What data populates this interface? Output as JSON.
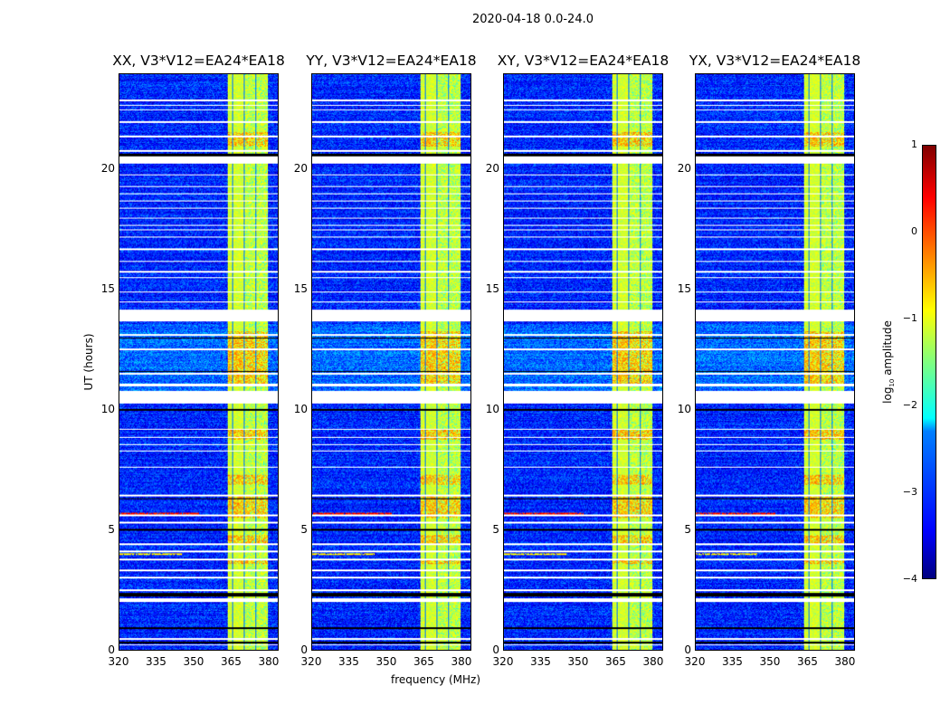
{
  "chart_data": {
    "type": "heatmap",
    "title": "2020-04-18 0.0-24.0",
    "xlabel": "frequency (MHz)",
    "ylabel": "UT (hours)",
    "xlim": [
      320,
      384
    ],
    "ylim": [
      0,
      24
    ],
    "xticks": [
      "320",
      "335",
      "350",
      "365",
      "380"
    ],
    "yticks": [
      "0",
      "5",
      "10",
      "15",
      "20"
    ],
    "panels": [
      {
        "title": "XX, V3*V12=EA24*EA18",
        "rfi_line": true
      },
      {
        "title": "YY, V3*V12=EA24*EA18",
        "rfi_line": true
      },
      {
        "title": "XY, V3*V12=EA24*EA18",
        "rfi_line": true
      },
      {
        "title": "YX, V3*V12=EA24*EA18",
        "rfi_line": true
      }
    ],
    "background_log_amp": -3.2,
    "band_log_amp": -1.1,
    "band_segments_mhz": [
      [
        363.5,
        365.3
      ],
      [
        365.7,
        370.0
      ],
      [
        370.4,
        374.7
      ],
      [
        375.1,
        379.8
      ]
    ],
    "band_bright_hours": [
      [
        0,
        2.1
      ],
      [
        2.6,
        10.4
      ],
      [
        10.4,
        13.6
      ],
      [
        13.6,
        24
      ]
    ],
    "hot_hours": [
      [
        3.6,
        3.8
      ],
      [
        4.4,
        4.8
      ],
      [
        5.5,
        6.4
      ],
      [
        6.9,
        7.3
      ],
      [
        8.8,
        9.2
      ],
      [
        11.0,
        13.3
      ],
      [
        21.0,
        21.6
      ]
    ],
    "flagged_white_hours": [
      [
        0.2,
        0.25
      ],
      [
        0.45,
        0.5
      ],
      [
        2.0,
        2.15
      ],
      [
        2.45,
        2.55
      ],
      [
        3.0,
        3.05
      ],
      [
        3.3,
        3.35
      ],
      [
        3.75,
        3.8
      ],
      [
        4.1,
        4.15
      ],
      [
        4.4,
        4.45
      ],
      [
        5.3,
        5.35
      ],
      [
        5.6,
        5.65
      ],
      [
        6.4,
        6.5
      ],
      [
        7.6,
        7.65
      ],
      [
        8.3,
        8.35
      ],
      [
        8.55,
        8.6
      ],
      [
        8.85,
        8.9
      ],
      [
        9.2,
        9.25
      ],
      [
        10.3,
        10.8
      ],
      [
        11.0,
        11.1
      ],
      [
        11.5,
        11.55
      ],
      [
        12.5,
        12.6
      ],
      [
        13.1,
        13.2
      ],
      [
        13.7,
        14.2
      ],
      [
        14.5,
        14.55
      ],
      [
        14.9,
        14.95
      ],
      [
        15.5,
        15.55
      ],
      [
        15.75,
        15.8
      ],
      [
        16.2,
        16.25
      ],
      [
        16.7,
        16.75
      ],
      [
        17.2,
        17.25
      ],
      [
        17.5,
        17.55
      ],
      [
        17.7,
        17.75
      ],
      [
        18.0,
        18.05
      ],
      [
        18.4,
        18.45
      ],
      [
        18.7,
        18.75
      ],
      [
        19.0,
        19.05
      ],
      [
        19.3,
        19.35
      ],
      [
        19.8,
        19.85
      ],
      [
        20.3,
        20.6
      ],
      [
        20.8,
        20.85
      ],
      [
        21.4,
        21.45
      ],
      [
        22.0,
        22.05
      ],
      [
        22.5,
        22.55
      ],
      [
        22.7,
        22.75
      ],
      [
        22.9,
        22.95
      ]
    ],
    "flagged_black_hours": [
      [
        0.9,
        0.95
      ],
      [
        0.3,
        0.35
      ],
      [
        2.25,
        2.4
      ],
      [
        5.0,
        5.05
      ],
      [
        6.3,
        6.35
      ],
      [
        10.0,
        10.05
      ],
      [
        13.0,
        13.05
      ],
      [
        14.9,
        14.92
      ],
      [
        20.6,
        20.7
      ],
      [
        11.6,
        11.65
      ]
    ],
    "rfi_lines": [
      {
        "hour": 5.7,
        "log_amp": 0.3,
        "f_range": [
          320,
          352
        ]
      },
      {
        "hour": 4.0,
        "log_amp": -0.8,
        "f_range": [
          320,
          345
        ]
      }
    ],
    "colorbar": {
      "label": "log10 amplitude",
      "label_main": "log",
      "label_sub": "10",
      "label_rest": " amplitude",
      "range": [
        -4,
        1
      ],
      "ticks": [
        "1",
        "0",
        "−1",
        "−2",
        "−3",
        "−4"
      ],
      "colormap": "jet"
    }
  }
}
